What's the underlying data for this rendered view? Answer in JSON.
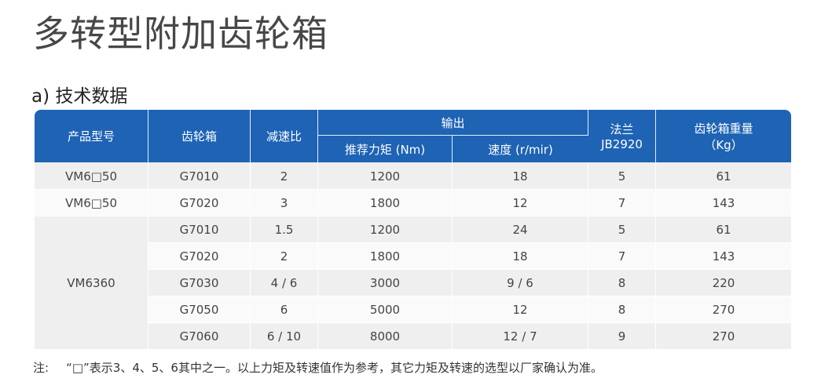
{
  "title": "多转型附加齿轮箱",
  "section_title": "a) 技术数据",
  "table": {
    "headers": {
      "model": "产品型号",
      "gearbox": "齿轮箱",
      "ratio": "减速比",
      "output": "输出",
      "torque": "推荐力矩 (Nm)",
      "speed": "速度 (r/mir)",
      "flange": "法兰",
      "flange_std": "JB2920",
      "weight": "齿轮箱重量",
      "weight_unit": "（Kg）"
    },
    "rows": [
      {
        "model": "VM6□50",
        "gearbox": "G7010",
        "ratio": "2",
        "torque": "1200",
        "speed": "18",
        "flange": "5",
        "weight": "61"
      },
      {
        "model": "VM6□50",
        "gearbox": "G7020",
        "ratio": "3",
        "torque": "1800",
        "speed": "12",
        "flange": "7",
        "weight": "143"
      },
      {
        "model": "VM6360",
        "gearbox": "G7010",
        "ratio": "1.5",
        "torque": "1200",
        "speed": "24",
        "flange": "5",
        "weight": "61"
      },
      {
        "model": "",
        "gearbox": "G7020",
        "ratio": "2",
        "torque": "1800",
        "speed": "18",
        "flange": "7",
        "weight": "143"
      },
      {
        "model": "",
        "gearbox": "G7030",
        "ratio": "4 / 6",
        "torque": "3000",
        "speed": "9 / 6",
        "flange": "8",
        "weight": "220"
      },
      {
        "model": "",
        "gearbox": "G7050",
        "ratio": "6",
        "torque": "5000",
        "speed": "12",
        "flange": "8",
        "weight": "270"
      },
      {
        "model": "",
        "gearbox": "G7060",
        "ratio": "6 / 10",
        "torque": "8000",
        "speed": "12 / 7",
        "flange": "9",
        "weight": "270"
      }
    ]
  },
  "note": {
    "label": "注:",
    "text": "“□”表示3、4、5、6其中之一。以上力矩及转速值作为参考，其它力矩及转速的选型以厂家确认为准。"
  },
  "colors": {
    "header_bg": "#1e63b4",
    "row_shade": "#efefef",
    "row_plain": "#fafafa"
  }
}
